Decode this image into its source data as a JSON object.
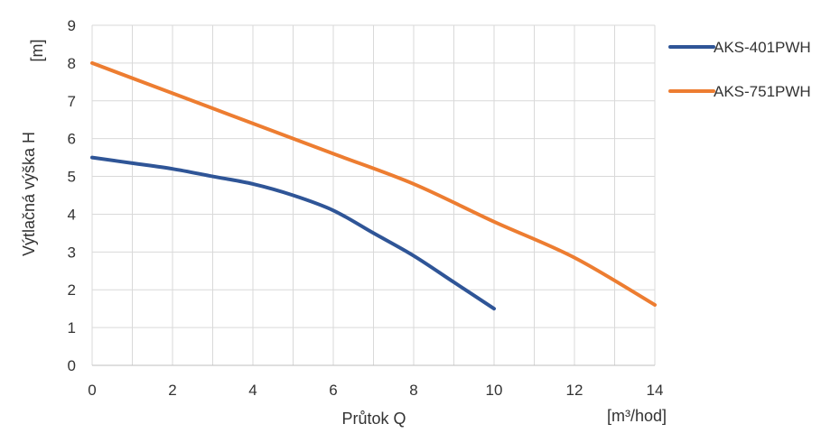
{
  "chart_data": {
    "type": "line",
    "title": "",
    "xlabel": "Průtok Q",
    "xunit": "[m³/hod]",
    "ylabel": "Výtlačná výška H",
    "yunit": "[m]",
    "xlim": [
      0,
      14
    ],
    "ylim": [
      0,
      9
    ],
    "x_ticks": [
      0,
      2,
      4,
      6,
      8,
      10,
      12,
      14
    ],
    "y_ticks": [
      0,
      1,
      2,
      3,
      4,
      5,
      6,
      7,
      8,
      9
    ],
    "grid": true,
    "legend_position": "right",
    "series": [
      {
        "name": "AKS-401PWH",
        "color": "#2F5597",
        "x": [
          0,
          1,
          2,
          3,
          4,
          5,
          6,
          7,
          8,
          9,
          10
        ],
        "y": [
          5.5,
          5.35,
          5.2,
          5.0,
          4.8,
          4.5,
          4.1,
          3.5,
          2.9,
          2.2,
          1.5
        ]
      },
      {
        "name": "AKS-751PWH",
        "color": "#ED7D31",
        "x": [
          0,
          2,
          4,
          6,
          8,
          10,
          12,
          14
        ],
        "y": [
          8.0,
          7.2,
          6.4,
          5.6,
          4.8,
          3.8,
          2.85,
          1.6
        ]
      }
    ]
  }
}
